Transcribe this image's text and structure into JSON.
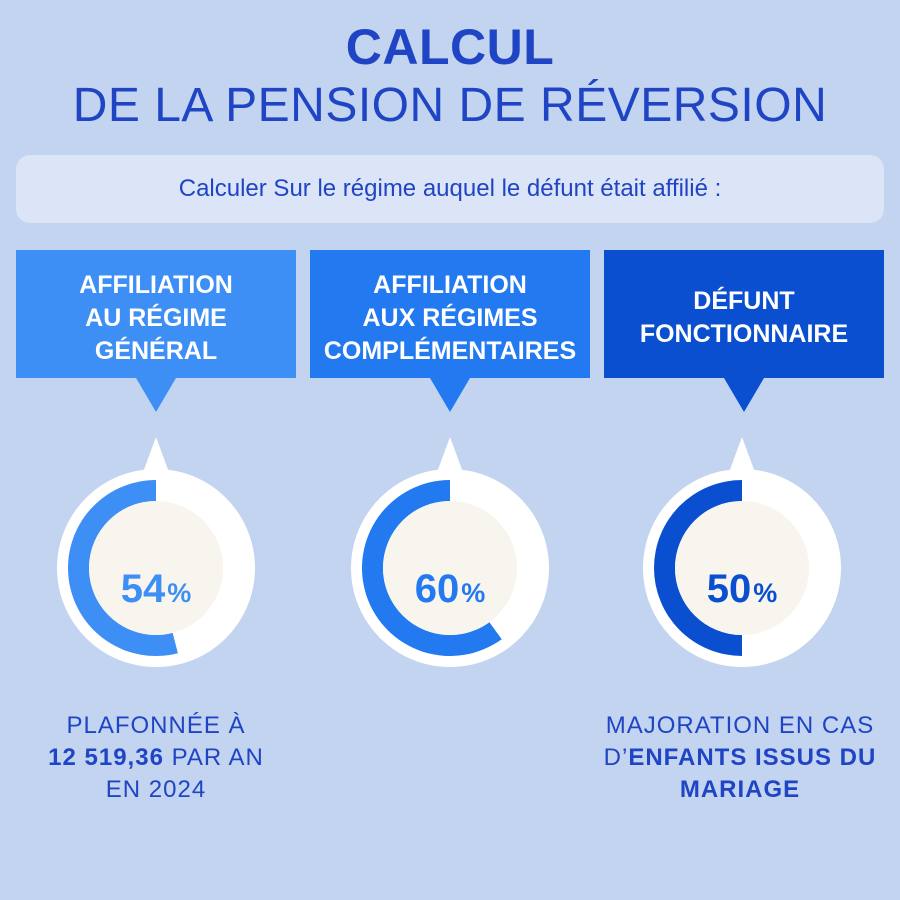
{
  "title": {
    "line1": "CALCUL",
    "line2": "DE LA PENSION DE RÉVERSION"
  },
  "subtitle": "Calculer Sur le régime auquel le défunt était affilié :",
  "colors": {
    "background": "#c3d4f0",
    "accent": "#1f45c4",
    "ring_track": "#ffffff",
    "ring_center": "#f8f5ee"
  },
  "columns": [
    {
      "banner_lines": [
        "AFFILIATION",
        "AU RÉGIME",
        "GÉNÉRAL"
      ],
      "color": "#3d8ef5",
      "value": "54",
      "unit": "%",
      "fraction": 0.54
    },
    {
      "banner_lines": [
        "AFFILIATION",
        "AUX RÉGIMES",
        "COMPLÉMENTAIRES"
      ],
      "color": "#2279f0",
      "value": "60",
      "unit": "%",
      "fraction": 0.6
    },
    {
      "banner_lines": [
        "DÉFUNT",
        "FONCTIONNAIRE"
      ],
      "color": "#0a4fd0",
      "value": "50",
      "unit": "%",
      "fraction": 0.5
    }
  ],
  "notes": {
    "left": {
      "line1": "PLAFONNÉE À",
      "line2_bold": "12 519,36",
      "line2_rest": " PAR AN",
      "line3": "EN 2024"
    },
    "right": {
      "line1": "MAJORATION EN CAS",
      "line2_prefix": "D’",
      "line2_bold": "ENFANTS ISSUS DU",
      "line3_bold": "MARIAGE"
    }
  }
}
